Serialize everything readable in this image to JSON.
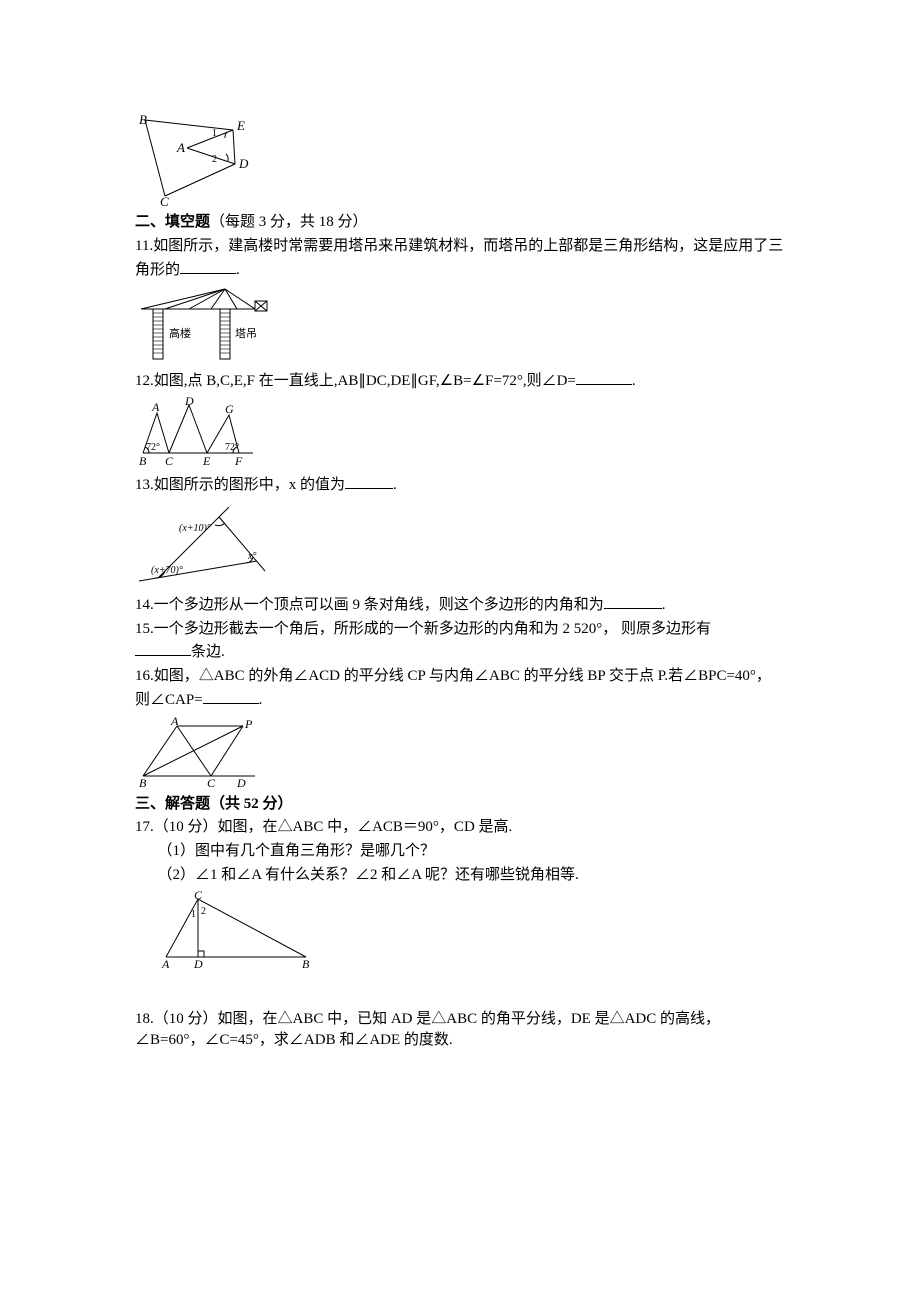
{
  "colors": {
    "text": "#000000",
    "bg": "#ffffff",
    "stroke": "#000000",
    "hatch": "#000000"
  },
  "fig_top": {
    "labels": {
      "A": "A",
      "B": "B",
      "C": "C",
      "D": "D",
      "E": "E",
      "one": "1",
      "two": "2"
    }
  },
  "section2": {
    "title": "二、填空题",
    "sub": "（每题 3 分，共 18 分）"
  },
  "q11": {
    "text_a": "11.如图所示，建高楼时常需要用塔吊来吊建筑材料，而塔吊的上部都是三角形结构，这是应用了三角形的",
    "text_b": "."
  },
  "fig11": {
    "labels": {
      "hl": "高楼",
      "td": "塔吊"
    }
  },
  "q12": {
    "text_a": "12.如图,点 B,C,E,F 在一直线上,AB∥DC,DE∥GF,∠B=∠F=72°,则∠D=",
    "text_b": "."
  },
  "fig12": {
    "labels": {
      "A": "A",
      "B": "B",
      "C": "C",
      "D": "D",
      "E": "E",
      "F": "F",
      "G": "G",
      "a1": "72°",
      "a2": "72°"
    }
  },
  "q13": {
    "text_a": "13.如图所示的图形中，x 的值为",
    "text_b": "."
  },
  "fig13": {
    "labels": {
      "t": "(x+10)°",
      "r": "x°",
      "b": "(x+70)°"
    }
  },
  "q14": {
    "text_a": "14.一个多边形从一个顶点可以画 9 条对角线，则这个多边形的内角和为",
    "text_b": "."
  },
  "q15": {
    "text_a": "15.一个多边形截去一个角后，所形成的一个新多边形的内角和为 2 520°， 则原多边形有",
    "text_b": "条边."
  },
  "q16": {
    "text_a": "16.如图，△ABC 的外角∠ACD 的平分线 CP 与内角∠ABC 的平分线 BP 交于点 P.若∠BPC=40°， 则∠CAP=",
    "text_b": "."
  },
  "fig16": {
    "labels": {
      "A": "A",
      "B": "B",
      "C": "C",
      "D": "D",
      "P": "P"
    }
  },
  "section3": {
    "title": "三、解答题（共 52 分）"
  },
  "q17": {
    "l1": "17.（10 分）如图，在△ABC 中，∠ACB＝90°，CD 是高.",
    "l2": "（1）图中有几个直角三角形？是哪几个？",
    "l3": "（2）∠1 和∠A 有什么关系？∠2 和∠A 呢？还有哪些锐角相等."
  },
  "fig17": {
    "labels": {
      "A": "A",
      "B": "B",
      "C": "C",
      "D": "D",
      "one": "1",
      "two": "2"
    }
  },
  "q18": {
    "l1": "18.（10 分）如图，在△ABC 中，已知 AD 是△ABC 的角平分线，DE 是△ADC 的高线，∠B=60°，∠C=45°，求∠ADB 和∠ADE 的度数."
  },
  "blanks": {
    "w_short": 48,
    "w_med": 56,
    "w_medlong": 58
  }
}
